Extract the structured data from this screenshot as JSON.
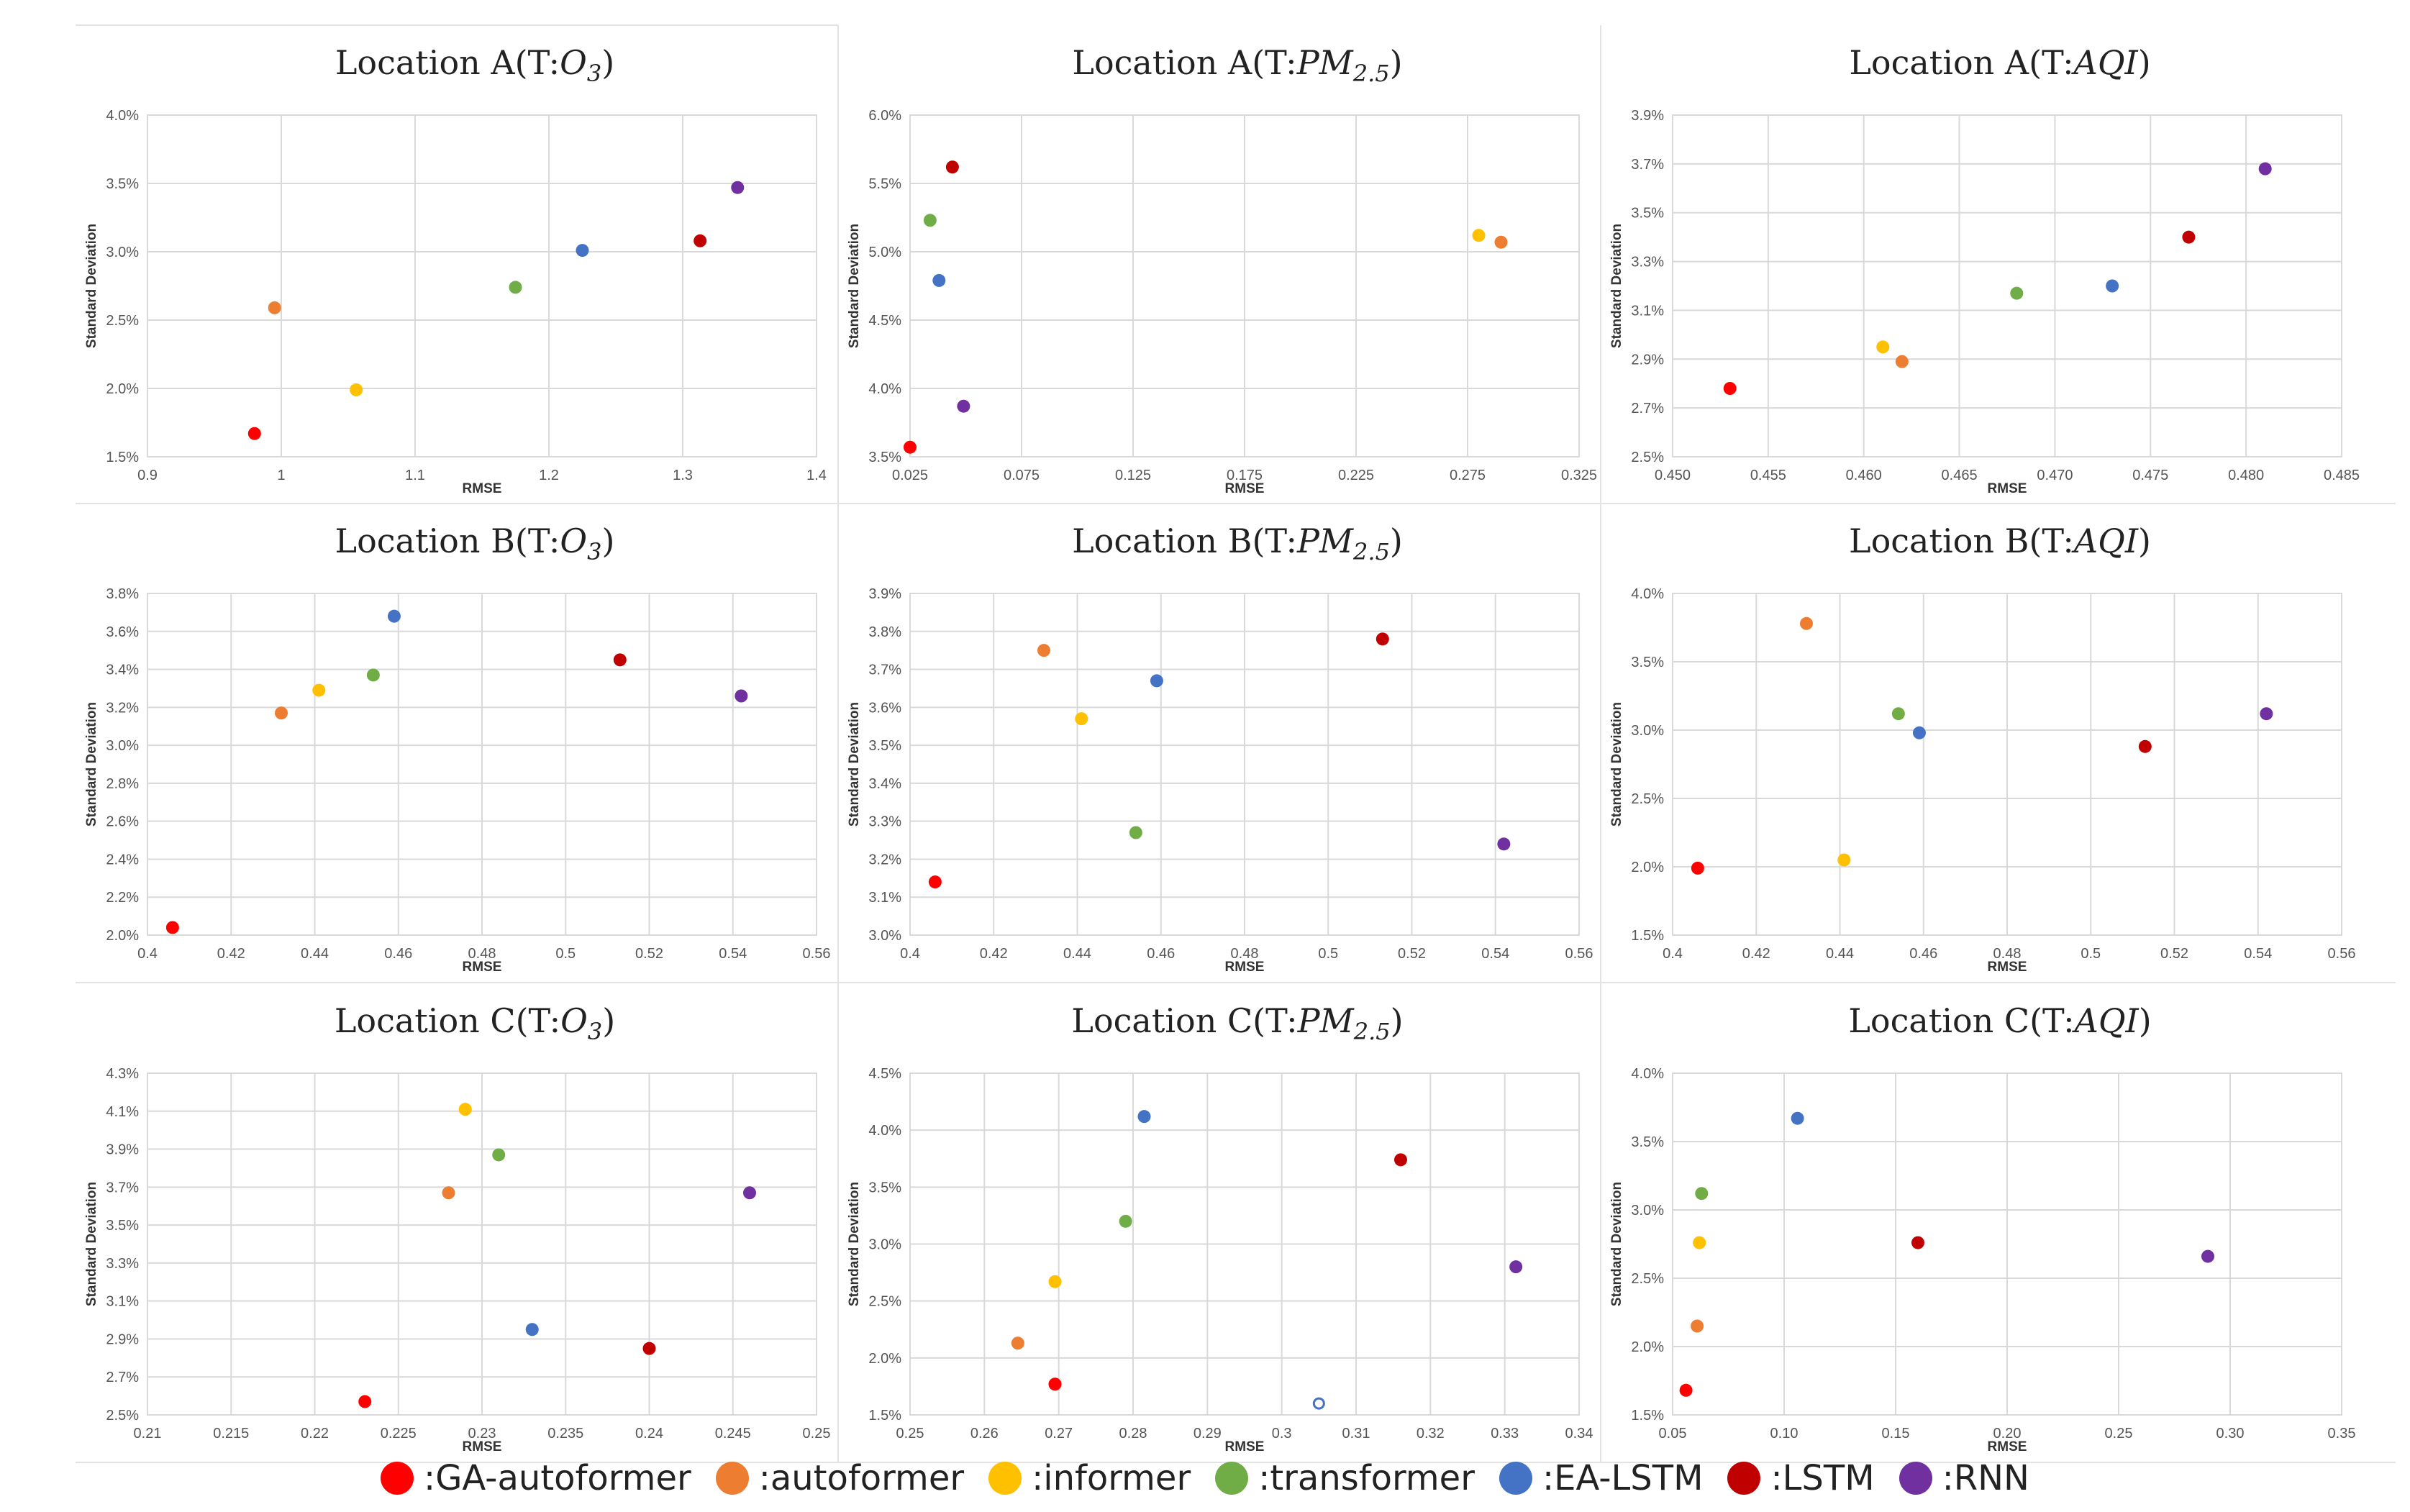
{
  "colors": {
    "GA-autoformer": "#ff0000",
    "autoformer": "#ed7d31",
    "informer": "#ffc000",
    "transformer": "#70ad47",
    "EA-LSTM": "#4472c4",
    "LSTM": "#c00000",
    "RNN": "#7030a0"
  },
  "legend": [
    {
      "key": "GA-autoformer",
      "label": ":GA-autoformer"
    },
    {
      "key": "autoformer",
      "label": ":autoformer"
    },
    {
      "key": "informer",
      "label": ":informer"
    },
    {
      "key": "transformer",
      "label": ":transformer"
    },
    {
      "key": "EA-LSTM",
      "label": ":EA-LSTM"
    },
    {
      "key": "LSTM",
      "label": ":LSTM"
    },
    {
      "key": "RNN",
      "label": ":RNN"
    }
  ],
  "chart_data": [
    {
      "type": "scatter",
      "title_prefix": "Location A(T:",
      "title_target": "O",
      "title_sub": "3",
      "title_suffix": ")",
      "xlabel": "RMSE",
      "ylabel": "Standard Deviation",
      "xlim": [
        0.9,
        1.4
      ],
      "ylim": [
        1.5,
        4.0
      ],
      "xticks": [
        "0.9",
        "1",
        "1.1",
        "1.2",
        "1.3",
        "1.4"
      ],
      "yticks": [
        "1.5%",
        "2.0%",
        "2.5%",
        "3.0%",
        "3.5%",
        "4.0%"
      ],
      "points": [
        {
          "model": "GA-autoformer",
          "x": 0.98,
          "y": 1.67
        },
        {
          "model": "autoformer",
          "x": 0.995,
          "y": 2.59
        },
        {
          "model": "informer",
          "x": 1.056,
          "y": 1.99
        },
        {
          "model": "transformer",
          "x": 1.175,
          "y": 2.74
        },
        {
          "model": "EA-LSTM",
          "x": 1.225,
          "y": 3.01
        },
        {
          "model": "LSTM",
          "x": 1.313,
          "y": 3.08
        },
        {
          "model": "RNN",
          "x": 1.341,
          "y": 3.47
        }
      ]
    },
    {
      "type": "scatter",
      "title_prefix": "Location A(T:",
      "title_target": "PM",
      "title_sub": "2.5",
      "title_suffix": ")",
      "xlabel": "RMSE",
      "ylabel": "Standard Deviation",
      "xlim": [
        0.025,
        0.325
      ],
      "ylim": [
        3.5,
        6.0
      ],
      "xticks": [
        "0.025",
        "0.075",
        "0.125",
        "0.175",
        "0.225",
        "0.275",
        "0.325"
      ],
      "yticks": [
        "3.5%",
        "4.0%",
        "4.5%",
        "5.0%",
        "5.5%",
        "6.0%"
      ],
      "points": [
        {
          "model": "GA-autoformer",
          "x": 0.025,
          "y": 3.57
        },
        {
          "model": "autoformer",
          "x": 0.29,
          "y": 5.07
        },
        {
          "model": "informer",
          "x": 0.28,
          "y": 5.12
        },
        {
          "model": "transformer",
          "x": 0.034,
          "y": 5.23
        },
        {
          "model": "EA-LSTM",
          "x": 0.038,
          "y": 4.79
        },
        {
          "model": "LSTM",
          "x": 0.044,
          "y": 5.62
        },
        {
          "model": "RNN",
          "x": 0.049,
          "y": 3.87
        }
      ]
    },
    {
      "type": "scatter",
      "title_prefix": "Location A(T:",
      "title_target": "AQI",
      "title_sub": "",
      "title_suffix": ")",
      "xlabel": "RMSE",
      "ylabel": "Standard Deviation",
      "xlim": [
        0.45,
        0.485
      ],
      "ylim": [
        2.5,
        3.9
      ],
      "xticks": [
        "0.450",
        "0.455",
        "0.460",
        "0.465",
        "0.470",
        "0.475",
        "0.480",
        "0.485"
      ],
      "yticks": [
        "2.5%",
        "2.7%",
        "2.9%",
        "3.1%",
        "3.3%",
        "3.5%",
        "3.7%",
        "3.9%"
      ],
      "points": [
        {
          "model": "GA-autoformer",
          "x": 0.453,
          "y": 2.78
        },
        {
          "model": "autoformer",
          "x": 0.462,
          "y": 2.89
        },
        {
          "model": "informer",
          "x": 0.461,
          "y": 2.95
        },
        {
          "model": "transformer",
          "x": 0.468,
          "y": 3.17
        },
        {
          "model": "EA-LSTM",
          "x": 0.473,
          "y": 3.2
        },
        {
          "model": "LSTM",
          "x": 0.477,
          "y": 3.4
        },
        {
          "model": "RNN",
          "x": 0.481,
          "y": 3.68
        }
      ]
    },
    {
      "type": "scatter",
      "title_prefix": "Location B(T:",
      "title_target": "O",
      "title_sub": "3",
      "title_suffix": ")",
      "xlabel": "RMSE",
      "ylabel": "Standard Deviation",
      "xlim": [
        0.4,
        0.56
      ],
      "ylim": [
        2.0,
        3.8
      ],
      "xticks": [
        "0.4",
        "0.42",
        "0.44",
        "0.46",
        "0.48",
        "0.5",
        "0.52",
        "0.54",
        "0.56"
      ],
      "yticks": [
        "2.0%",
        "2.2%",
        "2.4%",
        "2.6%",
        "2.8%",
        "3.0%",
        "3.2%",
        "3.4%",
        "3.6%",
        "3.8%"
      ],
      "points": [
        {
          "model": "GA-autoformer",
          "x": 0.406,
          "y": 2.04
        },
        {
          "model": "autoformer",
          "x": 0.432,
          "y": 3.17
        },
        {
          "model": "informer",
          "x": 0.441,
          "y": 3.29
        },
        {
          "model": "transformer",
          "x": 0.454,
          "y": 3.37
        },
        {
          "model": "EA-LSTM",
          "x": 0.459,
          "y": 3.68
        },
        {
          "model": "LSTM",
          "x": 0.513,
          "y": 3.45
        },
        {
          "model": "RNN",
          "x": 0.542,
          "y": 3.26
        }
      ]
    },
    {
      "type": "scatter",
      "title_prefix": "Location B(T:",
      "title_target": "PM",
      "title_sub": "2.5",
      "title_suffix": ")",
      "xlabel": "RMSE",
      "ylabel": "Standard Deviation",
      "xlim": [
        0.4,
        0.56
      ],
      "ylim": [
        3.0,
        3.9
      ],
      "xticks": [
        "0.4",
        "0.42",
        "0.44",
        "0.46",
        "0.48",
        "0.5",
        "0.52",
        "0.54",
        "0.56"
      ],
      "yticks": [
        "3.0%",
        "3.1%",
        "3.2%",
        "3.3%",
        "3.4%",
        "3.5%",
        "3.6%",
        "3.7%",
        "3.8%",
        "3.9%"
      ],
      "points": [
        {
          "model": "GA-autoformer",
          "x": 0.406,
          "y": 3.14
        },
        {
          "model": "autoformer",
          "x": 0.432,
          "y": 3.75
        },
        {
          "model": "informer",
          "x": 0.441,
          "y": 3.57
        },
        {
          "model": "transformer",
          "x": 0.454,
          "y": 3.27
        },
        {
          "model": "EA-LSTM",
          "x": 0.459,
          "y": 3.67
        },
        {
          "model": "LSTM",
          "x": 0.513,
          "y": 3.78
        },
        {
          "model": "RNN",
          "x": 0.542,
          "y": 3.24
        }
      ]
    },
    {
      "type": "scatter",
      "title_prefix": "Location B(T:",
      "title_target": "AQI",
      "title_sub": "",
      "title_suffix": ")",
      "xlabel": "RMSE",
      "ylabel": "Standard Deviation",
      "xlim": [
        0.4,
        0.56
      ],
      "ylim": [
        1.5,
        4.0
      ],
      "xticks": [
        "0.4",
        "0.42",
        "0.44",
        "0.46",
        "0.48",
        "0.5",
        "0.52",
        "0.54",
        "0.56"
      ],
      "yticks": [
        "1.5%",
        "2.0%",
        "2.5%",
        "3.0%",
        "3.5%",
        "4.0%"
      ],
      "points": [
        {
          "model": "GA-autoformer",
          "x": 0.406,
          "y": 1.99
        },
        {
          "model": "autoformer",
          "x": 0.432,
          "y": 3.78
        },
        {
          "model": "informer",
          "x": 0.441,
          "y": 2.05
        },
        {
          "model": "transformer",
          "x": 0.454,
          "y": 3.12
        },
        {
          "model": "EA-LSTM",
          "x": 0.459,
          "y": 2.98
        },
        {
          "model": "LSTM",
          "x": 0.513,
          "y": 2.88
        },
        {
          "model": "RNN",
          "x": 0.542,
          "y": 3.12
        }
      ]
    },
    {
      "type": "scatter",
      "title_prefix": "Location C(T:",
      "title_target": "O",
      "title_sub": "3",
      "title_suffix": ")",
      "xlabel": "RMSE",
      "ylabel": "Standard Deviation",
      "xlim": [
        0.21,
        0.25
      ],
      "ylim": [
        2.5,
        4.3
      ],
      "xticks": [
        "0.21",
        "0.215",
        "0.22",
        "0.225",
        "0.23",
        "0.235",
        "0.24",
        "0.245",
        "0.25"
      ],
      "yticks": [
        "2.5%",
        "2.7%",
        "2.9%",
        "3.1%",
        "3.3%",
        "3.5%",
        "3.7%",
        "3.9%",
        "4.1%",
        "4.3%"
      ],
      "points": [
        {
          "model": "GA-autoformer",
          "x": 0.223,
          "y": 2.57
        },
        {
          "model": "autoformer",
          "x": 0.228,
          "y": 3.67
        },
        {
          "model": "informer",
          "x": 0.229,
          "y": 4.11
        },
        {
          "model": "transformer",
          "x": 0.231,
          "y": 3.87
        },
        {
          "model": "EA-LSTM",
          "x": 0.233,
          "y": 2.95
        },
        {
          "model": "LSTM",
          "x": 0.24,
          "y": 2.85
        },
        {
          "model": "RNN",
          "x": 0.246,
          "y": 3.67
        }
      ]
    },
    {
      "type": "scatter",
      "title_prefix": "Location C(T:",
      "title_target": "PM",
      "title_sub": "2.5",
      "title_suffix": ")",
      "xlabel": "RMSE",
      "ylabel": "Standard Deviation",
      "xlim": [
        0.25,
        0.34
      ],
      "ylim": [
        1.5,
        4.5
      ],
      "xticks": [
        "0.25",
        "0.26",
        "0.27",
        "0.28",
        "0.29",
        "0.3",
        "0.31",
        "0.32",
        "0.33",
        "0.34"
      ],
      "yticks": [
        "1.5%",
        "2.0%",
        "2.5%",
        "3.0%",
        "3.5%",
        "4.0%",
        "4.5%"
      ],
      "points": [
        {
          "model": "GA-autoformer",
          "x": 0.2695,
          "y": 1.77
        },
        {
          "model": "autoformer",
          "x": 0.2645,
          "y": 2.13
        },
        {
          "model": "informer",
          "x": 0.2695,
          "y": 2.67
        },
        {
          "model": "transformer",
          "x": 0.279,
          "y": 3.2
        },
        {
          "model": "EA-LSTM",
          "x": 0.2815,
          "y": 4.12
        },
        {
          "model": "LSTM",
          "x": 0.316,
          "y": 3.74
        },
        {
          "model": "RNN",
          "x": 0.3315,
          "y": 2.8
        },
        {
          "model": "EA-LSTM",
          "x": 0.305,
          "y": 1.6,
          "hollow": true
        }
      ]
    },
    {
      "type": "scatter",
      "title_prefix": "Location C(T:",
      "title_target": "AQI",
      "title_sub": "",
      "title_suffix": ")",
      "xlabel": "RMSE",
      "ylabel": "Standard Deviation",
      "xlim": [
        0.05,
        0.35
      ],
      "ylim": [
        1.5,
        4.0
      ],
      "xticks": [
        "0.05",
        "0.10",
        "0.15",
        "0.20",
        "0.25",
        "0.30",
        "0.35"
      ],
      "yticks": [
        "1.5%",
        "2.0%",
        "2.5%",
        "3.0%",
        "3.5%",
        "4.0%"
      ],
      "points": [
        {
          "model": "GA-autoformer",
          "x": 0.056,
          "y": 1.68
        },
        {
          "model": "autoformer",
          "x": 0.061,
          "y": 2.15
        },
        {
          "model": "informer",
          "x": 0.062,
          "y": 2.76
        },
        {
          "model": "transformer",
          "x": 0.063,
          "y": 3.12
        },
        {
          "model": "EA-LSTM",
          "x": 0.106,
          "y": 3.67
        },
        {
          "model": "LSTM",
          "x": 0.16,
          "y": 2.76
        },
        {
          "model": "RNN",
          "x": 0.29,
          "y": 2.66
        }
      ]
    }
  ]
}
